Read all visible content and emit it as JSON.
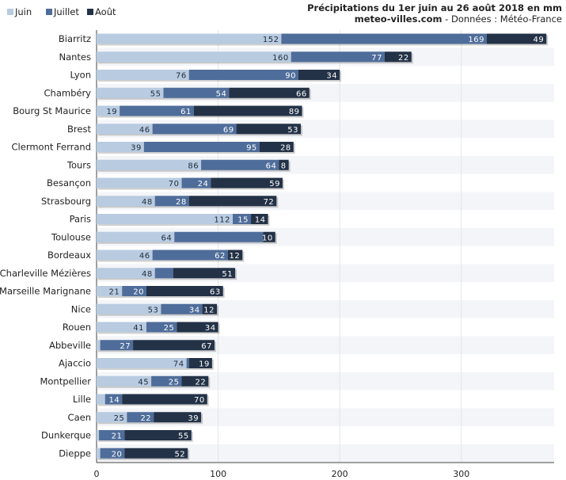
{
  "chart_data": {
    "type": "bar",
    "orientation": "horizontal",
    "stacked": true,
    "title": "Précipitations du 1er juin au 26 août 2018 en mm",
    "subtitle_source": "meteo-villes.com",
    "subtitle_rest": " - Données : Météo-France",
    "categories": [
      "Biarritz",
      "Nantes",
      "Lyon",
      "Chambéry",
      "Bourg St Maurice",
      "Brest",
      "Clermont Ferrand",
      "Tours",
      "Besançon",
      "Strasbourg",
      "Paris",
      "Toulouse",
      "Bordeaux",
      "Charleville Mézières",
      "Marseille Marignane",
      "Nice",
      "Rouen",
      "Abbeville",
      "Ajaccio",
      "Montpellier",
      "Lille",
      "Caen",
      "Dunkerque",
      "Dieppe"
    ],
    "series": [
      {
        "name": "Juin",
        "color": "#b8cbe0",
        "values": [
          152,
          160,
          76,
          55,
          19,
          46,
          39,
          86,
          70,
          48,
          112,
          64,
          46,
          48,
          21,
          53,
          41,
          3,
          74,
          45,
          7,
          25,
          2,
          3
        ]
      },
      {
        "name": "Juillet",
        "color": "#4f6d9a",
        "values": [
          169,
          77,
          90,
          54,
          61,
          69,
          95,
          64,
          24,
          28,
          15,
          73,
          62,
          15,
          20,
          34,
          25,
          27,
          2,
          25,
          14,
          22,
          21,
          20
        ]
      },
      {
        "name": "Août",
        "color": "#243247",
        "values": [
          49,
          22,
          34,
          66,
          89,
          53,
          28,
          8,
          59,
          72,
          14,
          10,
          12,
          51,
          63,
          12,
          34,
          67,
          19,
          22,
          70,
          39,
          55,
          52
        ]
      }
    ],
    "data_labels": [
      [
        "152",
        "169",
        "49"
      ],
      [
        "160",
        "77",
        "22"
      ],
      [
        "76",
        "90",
        "34"
      ],
      [
        "55",
        "54",
        "66"
      ],
      [
        "19",
        "61",
        "89"
      ],
      [
        "46",
        "69",
        "53"
      ],
      [
        "39",
        "95",
        "28"
      ],
      [
        "86",
        "64",
        "8"
      ],
      [
        "70",
        "24",
        "59"
      ],
      [
        "48",
        "28",
        "72"
      ],
      [
        "112",
        "15",
        "14"
      ],
      [
        "64",
        "",
        "10"
      ],
      [
        "46",
        "62",
        "12"
      ],
      [
        "48",
        "",
        "51"
      ],
      [
        "21",
        "20",
        "63"
      ],
      [
        "53",
        "34",
        "12"
      ],
      [
        "41",
        "25",
        "34"
      ],
      [
        "",
        "27",
        "67"
      ],
      [
        "74",
        "",
        "19"
      ],
      [
        "45",
        "25",
        "22"
      ],
      [
        "",
        "14",
        "70"
      ],
      [
        "25",
        "22",
        "39"
      ],
      [
        "",
        "21",
        "55"
      ],
      [
        "",
        "20",
        "52"
      ]
    ],
    "xticks": [
      "0",
      "100",
      "200",
      "300"
    ],
    "xlim": [
      0,
      370
    ],
    "grid": true,
    "legend_position": "top-left"
  }
}
